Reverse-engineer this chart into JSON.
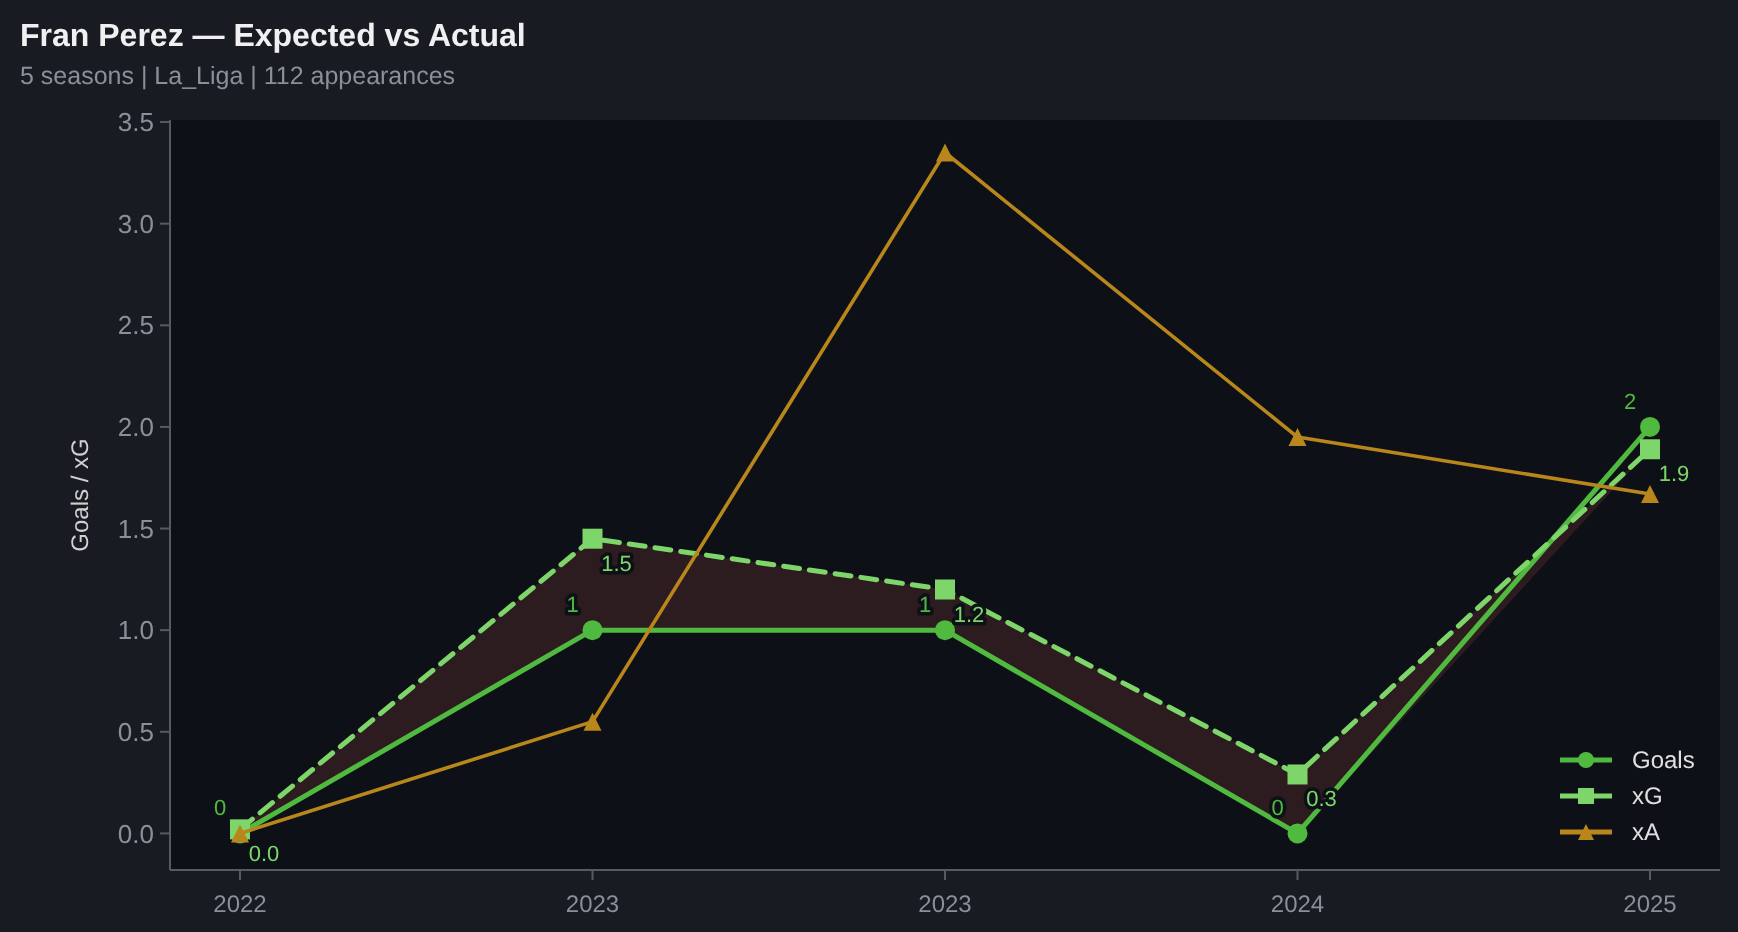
{
  "chart_data": {
    "type": "line",
    "title": "Fran Perez — Expected vs Actual",
    "subtitle": "5 seasons | La_Liga | 112 appearances",
    "ylabel": "Goals / xG",
    "categories": [
      "2022",
      "2023",
      "2023",
      "2024",
      "2025"
    ],
    "ylim": [
      -0.18,
      3.51
    ],
    "yticks": [
      {
        "value": 0,
        "label": "0.0"
      },
      {
        "value": 0.5,
        "label": "0.5"
      },
      {
        "value": 1,
        "label": "1.0"
      },
      {
        "value": 1.5,
        "label": "1.5"
      },
      {
        "value": 2,
        "label": "2.0"
      },
      {
        "value": 2.5,
        "label": "2.5"
      },
      {
        "value": 3,
        "label": "3.0"
      },
      {
        "value": 3.5,
        "label": "3.5"
      }
    ],
    "grid": false,
    "legend": "bottom right",
    "series": [
      {
        "name": "Goals",
        "color": "#4fba3f",
        "values": [
          0,
          1,
          1,
          0,
          2
        ],
        "marker": "circle",
        "line_style": "solid",
        "value_labels": [
          "0",
          "1",
          "1",
          "0",
          "2"
        ]
      },
      {
        "name": "xG",
        "color": "#7ed66a",
        "values": [
          0.02,
          1.45,
          1.2,
          0.29,
          1.89
        ],
        "marker": "square",
        "line_style": "dashed",
        "value_labels": [
          "0.0",
          "1.5",
          "1.2",
          "0.3",
          "1.9"
        ],
        "lower": [
          0,
          1,
          1,
          0,
          1.89
        ],
        "upper": [
          0.02,
          1.45,
          1.2,
          0.29,
          1.89
        ]
      },
      {
        "name": "xA",
        "color": "#b8861b",
        "values": [
          0,
          0.55,
          3.35,
          1.95,
          1.67
        ],
        "marker": "triangle",
        "line_style": "solid"
      }
    ]
  }
}
